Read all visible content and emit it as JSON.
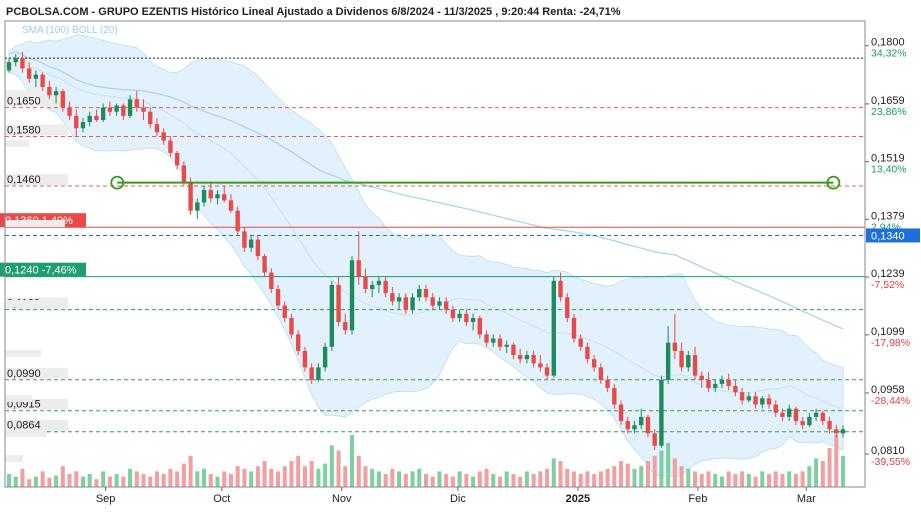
{
  "header": {
    "title": "PCBOLSA.COM - GRUPO EZENTIS Histórico Lineal Ajustado a Dividenos 6/8/2024 - 11/3/2025 , 9:20:44 Renta: -24,71%",
    "indicators": "SMA (100) BOLL (20)"
  },
  "chart_data": {
    "type": "candlestick",
    "title": "PCBOLSA.COM - GRUPO EZENTIS Histórico Lineal Ajustado a Dividenos 6/8/2024 - 11/3/2025 , 9:20:44 Renta: -24,71%",
    "ylim": [
      0.073,
      0.186
    ],
    "x_labels": [
      {
        "label": "Sep",
        "day": 26
      },
      {
        "label": "Oct",
        "day": 56
      },
      {
        "label": "Nov",
        "day": 87
      },
      {
        "label": "Dic",
        "day": 117
      },
      {
        "label": "2025",
        "day": 148
      },
      {
        "label": "Feb",
        "day": 179
      },
      {
        "label": "Mar",
        "day": 207
      }
    ],
    "last_day": 217,
    "right_axis": [
      {
        "price": "0,1800",
        "pct": "34,32%",
        "pct_color": "#1a9c6e"
      },
      {
        "price": "0,1659",
        "pct": "23,86%",
        "pct_color": "#1a9c6e"
      },
      {
        "price": "0,1519",
        "pct": "13,40%",
        "pct_color": "#1a9c6e"
      },
      {
        "price": "0,1379",
        "pct": "2,94%",
        "pct_color": "#1a9c6e"
      },
      {
        "price": "0,1239",
        "pct": "-7,52%",
        "pct_color": "#e03c3c"
      },
      {
        "price": "0,1099",
        "pct": "-17,98%",
        "pct_color": "#e03c3c"
      },
      {
        "price": "0,0958",
        "pct": "-28,44%",
        "pct_color": "#e03c3c"
      },
      {
        "price": "0,0810",
        "pct": "-39,55%",
        "pct_color": "#e03c3c"
      }
    ],
    "current_price": "0,1340",
    "levels": [
      {
        "value": 0.165,
        "label": "0,1650",
        "kind": "red"
      },
      {
        "value": 0.158,
        "label": "0,1580",
        "kind": "red"
      },
      {
        "value": 0.146,
        "label": "0,1460",
        "kind": "red"
      },
      {
        "value": 0.116,
        "label": "0,1160",
        "kind": "green"
      },
      {
        "value": 0.099,
        "label": "0,0990",
        "kind": "green"
      },
      {
        "value": 0.0915,
        "label": "0,0915",
        "kind": "green"
      },
      {
        "value": 0.0864,
        "label": "0,0864",
        "kind": "green"
      }
    ],
    "tags": [
      {
        "value": 0.136,
        "label": "0,1360",
        "pct": "1,49%",
        "color": "#e84a4a"
      },
      {
        "value": 0.124,
        "label": "0,1240",
        "pct": "-7,46%",
        "color": "#1f9e73"
      }
    ],
    "trendline": {
      "day_start": 29,
      "day_end": 214,
      "value": 0.1468
    },
    "top_line": 0.177,
    "colors": {
      "up": "#1f8a5a",
      "down": "#e84a4a",
      "sma": "#aad4ee",
      "band": "#d8ecfa",
      "trend": "#3a9a1a",
      "tag_blue": "#1e6fd9"
    },
    "candles": [
      [
        0,
        0.174,
        0.177,
        0.1735,
        0.176
      ],
      [
        1,
        0.176,
        0.178,
        0.175,
        0.177
      ],
      [
        2,
        0.177,
        0.1785,
        0.1735,
        0.1745
      ],
      [
        3,
        0.1745,
        0.176,
        0.171,
        0.172
      ],
      [
        4,
        0.172,
        0.174,
        0.17,
        0.173
      ],
      [
        5,
        0.173,
        0.1735,
        0.169,
        0.17
      ],
      [
        6,
        0.17,
        0.1715,
        0.167,
        0.168
      ],
      [
        7,
        0.168,
        0.17,
        0.166,
        0.169
      ],
      [
        8,
        0.169,
        0.1695,
        0.164,
        0.165
      ],
      [
        9,
        0.165,
        0.1665,
        0.162,
        0.163
      ],
      [
        10,
        0.163,
        0.1645,
        0.158,
        0.16
      ],
      [
        11,
        0.16,
        0.1625,
        0.159,
        0.1615
      ],
      [
        12,
        0.1615,
        0.164,
        0.1605,
        0.163
      ],
      [
        13,
        0.163,
        0.1645,
        0.1615,
        0.162
      ],
      [
        14,
        0.162,
        0.166,
        0.1615,
        0.165
      ],
      [
        15,
        0.165,
        0.1665,
        0.163,
        0.164
      ],
      [
        16,
        0.164,
        0.166,
        0.163,
        0.1655
      ],
      [
        17,
        0.1655,
        0.166,
        0.162,
        0.163
      ],
      [
        18,
        0.163,
        0.168,
        0.1625,
        0.167
      ],
      [
        19,
        0.167,
        0.169,
        0.164,
        0.165
      ],
      [
        20,
        0.165,
        0.167,
        0.162,
        0.164
      ],
      [
        21,
        0.164,
        0.165,
        0.16,
        0.161
      ],
      [
        22,
        0.161,
        0.1625,
        0.158,
        0.159
      ],
      [
        23,
        0.159,
        0.16,
        0.156,
        0.157
      ],
      [
        24,
        0.157,
        0.158,
        0.153,
        0.154
      ],
      [
        25,
        0.154,
        0.1545,
        0.15,
        0.151
      ],
      [
        26,
        0.151,
        0.152,
        0.146,
        0.147
      ],
      [
        27,
        0.147,
        0.148,
        0.139,
        0.14
      ],
      [
        28,
        0.14,
        0.143,
        0.138,
        0.142
      ],
      [
        29,
        0.142,
        0.146,
        0.141,
        0.145
      ],
      [
        30,
        0.145,
        0.147,
        0.142,
        0.143
      ],
      [
        31,
        0.143,
        0.145,
        0.1415,
        0.144
      ],
      [
        32,
        0.144,
        0.146,
        0.142,
        0.1425
      ],
      [
        33,
        0.1425,
        0.144,
        0.1395,
        0.14
      ],
      [
        34,
        0.14,
        0.141,
        0.134,
        0.135
      ],
      [
        35,
        0.135,
        0.136,
        0.13,
        0.131
      ],
      [
        36,
        0.131,
        0.134,
        0.13,
        0.133
      ],
      [
        37,
        0.133,
        0.134,
        0.128,
        0.129
      ],
      [
        38,
        0.129,
        0.1295,
        0.124,
        0.125
      ],
      [
        39,
        0.125,
        0.126,
        0.12,
        0.121
      ],
      [
        40,
        0.121,
        0.122,
        0.116,
        0.117
      ],
      [
        41,
        0.117,
        0.118,
        0.113,
        0.114
      ],
      [
        42,
        0.114,
        0.115,
        0.109,
        0.11
      ],
      [
        43,
        0.11,
        0.111,
        0.105,
        0.106
      ],
      [
        44,
        0.106,
        0.107,
        0.101,
        0.102
      ],
      [
        45,
        0.102,
        0.103,
        0.098,
        0.099
      ],
      [
        46,
        0.099,
        0.103,
        0.0985,
        0.102
      ],
      [
        47,
        0.102,
        0.108,
        0.101,
        0.107
      ],
      [
        48,
        0.107,
        0.123,
        0.106,
        0.122
      ],
      [
        49,
        0.122,
        0.124,
        0.112,
        0.113
      ],
      [
        50,
        0.113,
        0.115,
        0.11,
        0.111
      ],
      [
        51,
        0.111,
        0.129,
        0.11,
        0.128
      ],
      [
        52,
        0.128,
        0.135,
        0.122,
        0.124
      ],
      [
        53,
        0.124,
        0.126,
        0.12,
        0.121
      ],
      [
        54,
        0.121,
        0.123,
        0.119,
        0.122
      ],
      [
        55,
        0.122,
        0.124,
        0.12,
        0.123
      ],
      [
        56,
        0.123,
        0.124,
        0.119,
        0.12
      ],
      [
        57,
        0.12,
        0.1215,
        0.117,
        0.118
      ],
      [
        58,
        0.118,
        0.12,
        0.116,
        0.119
      ],
      [
        59,
        0.119,
        0.12,
        0.115,
        0.116
      ],
      [
        60,
        0.116,
        0.12,
        0.115,
        0.119
      ],
      [
        61,
        0.119,
        0.122,
        0.118,
        0.121
      ],
      [
        62,
        0.121,
        0.122,
        0.118,
        0.119
      ],
      [
        63,
        0.119,
        0.12,
        0.116,
        0.117
      ],
      [
        64,
        0.117,
        0.119,
        0.116,
        0.118
      ],
      [
        65,
        0.118,
        0.119,
        0.115,
        0.116
      ],
      [
        66,
        0.116,
        0.117,
        0.113,
        0.114
      ],
      [
        67,
        0.114,
        0.116,
        0.113,
        0.115
      ],
      [
        68,
        0.115,
        0.116,
        0.112,
        0.113
      ],
      [
        69,
        0.113,
        0.115,
        0.111,
        0.114
      ],
      [
        70,
        0.114,
        0.1145,
        0.109,
        0.11
      ],
      [
        71,
        0.11,
        0.111,
        0.107,
        0.108
      ],
      [
        72,
        0.108,
        0.11,
        0.107,
        0.109
      ],
      [
        73,
        0.109,
        0.11,
        0.106,
        0.107
      ],
      [
        74,
        0.107,
        0.1085,
        0.1055,
        0.1075
      ],
      [
        75,
        0.1075,
        0.108,
        0.104,
        0.105
      ],
      [
        76,
        0.105,
        0.1065,
        0.103,
        0.104
      ],
      [
        77,
        0.104,
        0.106,
        0.103,
        0.105
      ],
      [
        78,
        0.105,
        0.106,
        0.102,
        0.103
      ],
      [
        79,
        0.103,
        0.105,
        0.101,
        0.102
      ],
      [
        80,
        0.102,
        0.103,
        0.099,
        0.1
      ],
      [
        81,
        0.1,
        0.124,
        0.0995,
        0.123
      ],
      [
        82,
        0.123,
        0.125,
        0.118,
        0.119
      ],
      [
        83,
        0.119,
        0.12,
        0.113,
        0.114
      ],
      [
        84,
        0.114,
        0.115,
        0.108,
        0.109
      ],
      [
        85,
        0.109,
        0.11,
        0.106,
        0.107
      ],
      [
        86,
        0.107,
        0.108,
        0.103,
        0.104
      ],
      [
        87,
        0.104,
        0.105,
        0.101,
        0.102
      ],
      [
        88,
        0.102,
        0.103,
        0.098,
        0.099
      ],
      [
        89,
        0.099,
        0.1,
        0.096,
        0.097
      ],
      [
        90,
        0.097,
        0.098,
        0.092,
        0.093
      ],
      [
        91,
        0.093,
        0.094,
        0.088,
        0.089
      ],
      [
        92,
        0.089,
        0.09,
        0.086,
        0.087
      ],
      [
        93,
        0.087,
        0.089,
        0.086,
        0.088
      ],
      [
        94,
        0.088,
        0.092,
        0.087,
        0.09
      ],
      [
        95,
        0.09,
        0.0905,
        0.085,
        0.086
      ],
      [
        96,
        0.086,
        0.087,
        0.082,
        0.083
      ],
      [
        97,
        0.083,
        0.1,
        0.0825,
        0.099
      ],
      [
        98,
        0.099,
        0.112,
        0.098,
        0.108
      ],
      [
        99,
        0.108,
        0.115,
        0.104,
        0.106
      ],
      [
        100,
        0.106,
        0.108,
        0.101,
        0.102
      ],
      [
        101,
        0.102,
        0.106,
        0.101,
        0.105
      ],
      [
        102,
        0.105,
        0.107,
        0.099,
        0.1
      ],
      [
        103,
        0.1,
        0.101,
        0.097,
        0.099
      ],
      [
        104,
        0.099,
        0.101,
        0.096,
        0.097
      ],
      [
        105,
        0.097,
        0.099,
        0.096,
        0.098
      ],
      [
        106,
        0.098,
        0.1,
        0.097,
        0.099
      ],
      [
        107,
        0.099,
        0.1005,
        0.0965,
        0.0975
      ],
      [
        108,
        0.0975,
        0.099,
        0.095,
        0.096
      ],
      [
        109,
        0.096,
        0.097,
        0.093,
        0.094
      ],
      [
        110,
        0.094,
        0.096,
        0.0935,
        0.095
      ],
      [
        111,
        0.095,
        0.096,
        0.092,
        0.093
      ],
      [
        112,
        0.093,
        0.095,
        0.092,
        0.0945
      ],
      [
        113,
        0.0945,
        0.0955,
        0.092,
        0.093
      ],
      [
        114,
        0.093,
        0.094,
        0.09,
        0.091
      ],
      [
        115,
        0.091,
        0.092,
        0.089,
        0.09
      ],
      [
        116,
        0.09,
        0.093,
        0.089,
        0.092
      ],
      [
        117,
        0.092,
        0.0925,
        0.088,
        0.089
      ],
      [
        118,
        0.089,
        0.09,
        0.087,
        0.088
      ],
      [
        119,
        0.088,
        0.091,
        0.0875,
        0.09
      ],
      [
        120,
        0.09,
        0.092,
        0.089,
        0.091
      ],
      [
        121,
        0.091,
        0.0915,
        0.088,
        0.089
      ],
      [
        122,
        0.089,
        0.09,
        0.086,
        0.087
      ],
      [
        123,
        0.087,
        0.088,
        0.085,
        0.086
      ],
      [
        124,
        0.086,
        0.088,
        0.085,
        0.087
      ]
    ],
    "volumes": [
      [
        0,
        0.25
      ],
      [
        1,
        0.2
      ],
      [
        2,
        0.35
      ],
      [
        3,
        0.15
      ],
      [
        4,
        0.2
      ],
      [
        5,
        0.3
      ],
      [
        6,
        0.18
      ],
      [
        7,
        0.22
      ],
      [
        8,
        0.4
      ],
      [
        9,
        0.25
      ],
      [
        10,
        0.3
      ],
      [
        11,
        0.2
      ],
      [
        12,
        0.25
      ],
      [
        13,
        0.15
      ],
      [
        14,
        0.3
      ],
      [
        15,
        0.2
      ],
      [
        16,
        0.25
      ],
      [
        17,
        0.2
      ],
      [
        18,
        0.35
      ],
      [
        19,
        0.3
      ],
      [
        20,
        0.25
      ],
      [
        21,
        0.2
      ],
      [
        22,
        0.3
      ],
      [
        23,
        0.25
      ],
      [
        24,
        0.35
      ],
      [
        25,
        0.3
      ],
      [
        26,
        0.45
      ],
      [
        27,
        0.6
      ],
      [
        28,
        0.3
      ],
      [
        29,
        0.35
      ],
      [
        30,
        0.25
      ],
      [
        31,
        0.2
      ],
      [
        32,
        0.3
      ],
      [
        33,
        0.25
      ],
      [
        34,
        0.4
      ],
      [
        35,
        0.35
      ],
      [
        36,
        0.3
      ],
      [
        37,
        0.4
      ],
      [
        38,
        0.5
      ],
      [
        39,
        0.35
      ],
      [
        40,
        0.3
      ],
      [
        41,
        0.4
      ],
      [
        42,
        0.5
      ],
      [
        43,
        0.6
      ],
      [
        44,
        0.4
      ],
      [
        45,
        0.5
      ],
      [
        46,
        0.35
      ],
      [
        47,
        0.45
      ],
      [
        48,
        0.8
      ],
      [
        49,
        0.7
      ],
      [
        50,
        0.4
      ],
      [
        51,
        1.0
      ],
      [
        52,
        0.6
      ],
      [
        53,
        0.4
      ],
      [
        54,
        0.35
      ],
      [
        55,
        0.3
      ],
      [
        56,
        0.25
      ],
      [
        57,
        0.35
      ],
      [
        58,
        0.3
      ],
      [
        59,
        0.25
      ],
      [
        60,
        0.3
      ],
      [
        61,
        0.35
      ],
      [
        62,
        0.25
      ],
      [
        63,
        0.2
      ],
      [
        64,
        0.3
      ],
      [
        65,
        0.25
      ],
      [
        66,
        0.2
      ],
      [
        67,
        0.3
      ],
      [
        68,
        0.25
      ],
      [
        69,
        0.2
      ],
      [
        70,
        0.3
      ],
      [
        71,
        0.35
      ],
      [
        72,
        0.25
      ],
      [
        73,
        0.2
      ],
      [
        74,
        0.3
      ],
      [
        75,
        0.25
      ],
      [
        76,
        0.2
      ],
      [
        77,
        0.3
      ],
      [
        78,
        0.25
      ],
      [
        79,
        0.3
      ],
      [
        80,
        0.35
      ],
      [
        81,
        0.55
      ],
      [
        82,
        0.5
      ],
      [
        83,
        0.35
      ],
      [
        84,
        0.3
      ],
      [
        85,
        0.25
      ],
      [
        86,
        0.3
      ],
      [
        87,
        0.25
      ],
      [
        88,
        0.3
      ],
      [
        89,
        0.35
      ],
      [
        90,
        0.4
      ],
      [
        91,
        0.5
      ],
      [
        92,
        0.45
      ],
      [
        93,
        0.35
      ],
      [
        94,
        0.4
      ],
      [
        95,
        0.5
      ],
      [
        96,
        0.6
      ],
      [
        97,
        0.7
      ],
      [
        98,
        0.85
      ],
      [
        99,
        0.55
      ],
      [
        100,
        0.4
      ],
      [
        101,
        0.35
      ],
      [
        102,
        0.3
      ],
      [
        103,
        0.25
      ],
      [
        104,
        0.3
      ],
      [
        105,
        0.25
      ],
      [
        106,
        0.2
      ],
      [
        107,
        0.3
      ],
      [
        108,
        0.25
      ],
      [
        109,
        0.3
      ],
      [
        110,
        0.25
      ],
      [
        111,
        0.2
      ],
      [
        112,
        0.3
      ],
      [
        113,
        0.25
      ],
      [
        114,
        0.3
      ],
      [
        115,
        0.25
      ],
      [
        116,
        0.3
      ],
      [
        117,
        0.25
      ],
      [
        118,
        0.3
      ],
      [
        119,
        0.4
      ],
      [
        120,
        0.55
      ],
      [
        121,
        0.5
      ],
      [
        122,
        0.75
      ],
      [
        123,
        1.0
      ],
      [
        124,
        0.6
      ]
    ]
  }
}
